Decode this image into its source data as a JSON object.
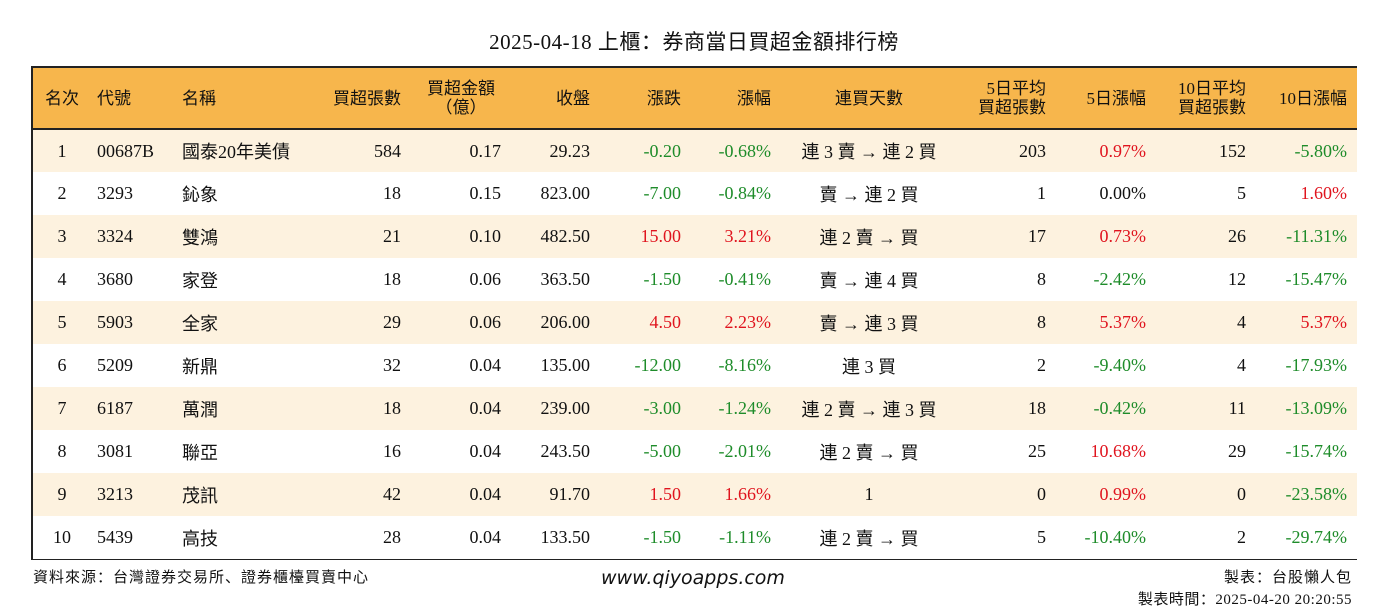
{
  "title": "2025-04-18 上櫃：券商當日買超金額排行榜",
  "headers": {
    "rank": "名次",
    "code": "代號",
    "name": "名稱",
    "buy_lots": "買超張數",
    "buy_amount_1": "買超金額",
    "buy_amount_2": "（億）",
    "close": "收盤",
    "change": "漲跌",
    "change_pct": "漲幅",
    "streak": "連買天數",
    "avg5_1": "5日平均",
    "avg5_2": "買超張數",
    "pct5": "5日漲幅",
    "avg10_1": "10日平均",
    "avg10_2": "買超張數",
    "pct10": "10日漲幅"
  },
  "rows": [
    {
      "rank": "1",
      "code": "00687B",
      "name": "國泰20年美債",
      "buy_lots": "584",
      "amount": "0.17",
      "close": "29.23",
      "change": "-0.20",
      "change_color": "#1e8c2a",
      "change_pct": "-0.68%",
      "streak": "連 3 賣 → 連 2 買",
      "avg5": "203",
      "pct5": "0.97%",
      "pct5_color": "#e0141e",
      "avg10": "152",
      "pct10": "-5.80%",
      "pct10_color": "#1e8c2a"
    },
    {
      "rank": "2",
      "code": "3293",
      "name": "鈊象",
      "buy_lots": "18",
      "amount": "0.15",
      "close": "823.00",
      "change": "-7.00",
      "change_color": "#1e8c2a",
      "change_pct": "-0.84%",
      "streak": "賣 → 連 2 買",
      "avg5": "1",
      "pct5": "0.00%",
      "pct5_color": "#111111",
      "avg10": "5",
      "pct10": "1.60%",
      "pct10_color": "#e0141e"
    },
    {
      "rank": "3",
      "code": "3324",
      "name": "雙鴻",
      "buy_lots": "21",
      "amount": "0.10",
      "close": "482.50",
      "change": "15.00",
      "change_color": "#e0141e",
      "change_pct": "3.21%",
      "streak": "連 2 賣 → 買",
      "avg5": "17",
      "pct5": "0.73%",
      "pct5_color": "#e0141e",
      "avg10": "26",
      "pct10": "-11.31%",
      "pct10_color": "#1e8c2a"
    },
    {
      "rank": "4",
      "code": "3680",
      "name": "家登",
      "buy_lots": "18",
      "amount": "0.06",
      "close": "363.50",
      "change": "-1.50",
      "change_color": "#1e8c2a",
      "change_pct": "-0.41%",
      "streak": "賣 → 連 4 買",
      "avg5": "8",
      "pct5": "-2.42%",
      "pct5_color": "#1e8c2a",
      "avg10": "12",
      "pct10": "-15.47%",
      "pct10_color": "#1e8c2a"
    },
    {
      "rank": "5",
      "code": "5903",
      "name": "全家",
      "buy_lots": "29",
      "amount": "0.06",
      "close": "206.00",
      "change": "4.50",
      "change_color": "#e0141e",
      "change_pct": "2.23%",
      "streak": "賣 → 連 3 買",
      "avg5": "8",
      "pct5": "5.37%",
      "pct5_color": "#e0141e",
      "avg10": "4",
      "pct10": "5.37%",
      "pct10_color": "#e0141e"
    },
    {
      "rank": "6",
      "code": "5209",
      "name": "新鼎",
      "buy_lots": "32",
      "amount": "0.04",
      "close": "135.00",
      "change": "-12.00",
      "change_color": "#1e8c2a",
      "change_pct": "-8.16%",
      "streak": "連 3 買",
      "avg5": "2",
      "pct5": "-9.40%",
      "pct5_color": "#1e8c2a",
      "avg10": "4",
      "pct10": "-17.93%",
      "pct10_color": "#1e8c2a"
    },
    {
      "rank": "7",
      "code": "6187",
      "name": "萬潤",
      "buy_lots": "18",
      "amount": "0.04",
      "close": "239.00",
      "change": "-3.00",
      "change_color": "#1e8c2a",
      "change_pct": "-1.24%",
      "streak": "連 2 賣 → 連 3 買",
      "avg5": "18",
      "pct5": "-0.42%",
      "pct5_color": "#1e8c2a",
      "avg10": "11",
      "pct10": "-13.09%",
      "pct10_color": "#1e8c2a"
    },
    {
      "rank": "8",
      "code": "3081",
      "name": "聯亞",
      "buy_lots": "16",
      "amount": "0.04",
      "close": "243.50",
      "change": "-5.00",
      "change_color": "#1e8c2a",
      "change_pct": "-2.01%",
      "streak": "連 2 賣 → 買",
      "avg5": "25",
      "pct5": "10.68%",
      "pct5_color": "#e0141e",
      "avg10": "29",
      "pct10": "-15.74%",
      "pct10_color": "#1e8c2a"
    },
    {
      "rank": "9",
      "code": "3213",
      "name": "茂訊",
      "buy_lots": "42",
      "amount": "0.04",
      "close": "91.70",
      "change": "1.50",
      "change_color": "#e0141e",
      "change_pct": "1.66%",
      "streak": "1",
      "avg5": "0",
      "pct5": "0.99%",
      "pct5_color": "#e0141e",
      "avg10": "0",
      "pct10": "-23.58%",
      "pct10_color": "#1e8c2a"
    },
    {
      "rank": "10",
      "code": "5439",
      "name": "高技",
      "buy_lots": "28",
      "amount": "0.04",
      "close": "133.50",
      "change": "-1.50",
      "change_color": "#1e8c2a",
      "change_pct": "-1.11%",
      "streak": "連 2 賣 → 買",
      "avg5": "5",
      "pct5": "-10.40%",
      "pct5_color": "#1e8c2a",
      "avg10": "2",
      "pct10": "-29.74%",
      "pct10_color": "#1e8c2a"
    }
  ],
  "footer": {
    "source": "資料來源：台灣證券交易所、證券櫃檯買賣中心",
    "website": "www.qiyoapps.com",
    "author": "製表：台股懶人包",
    "made_time": "製表時間：2025-04-20 20:20:55"
  }
}
